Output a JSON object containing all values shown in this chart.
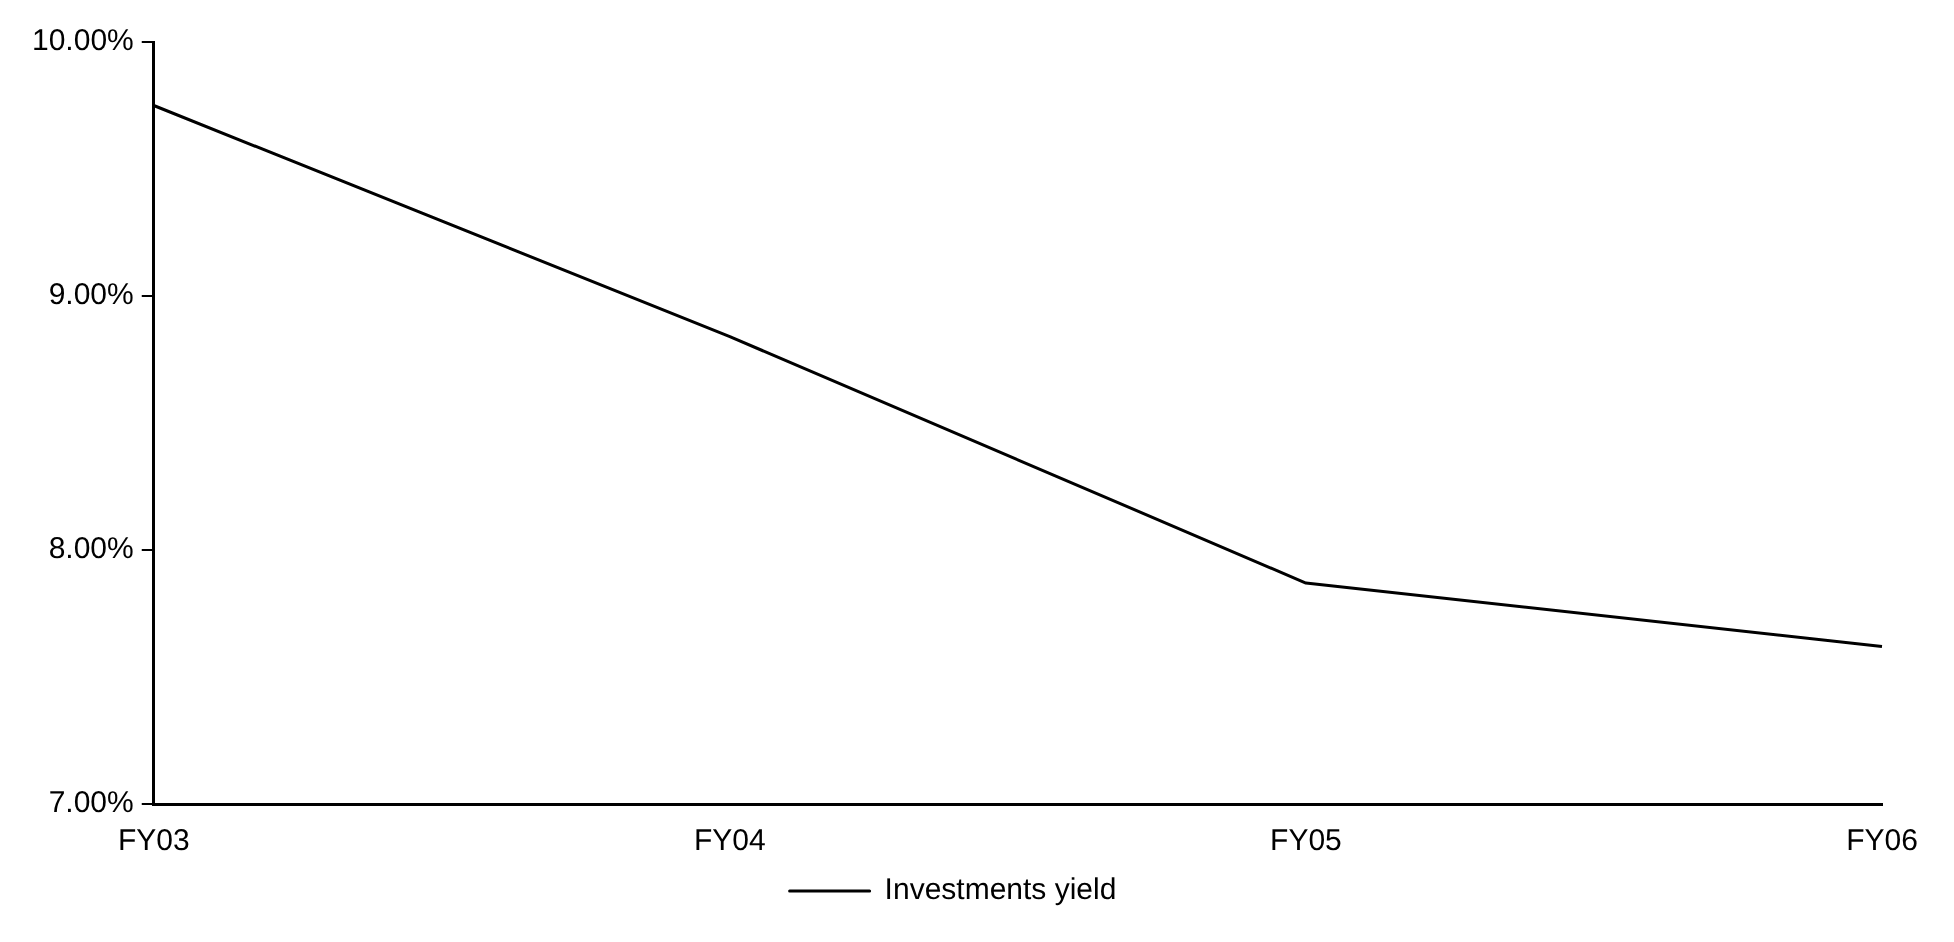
{
  "chart_data": {
    "type": "line",
    "categories": [
      "FY03",
      "FY04",
      "FY05",
      "FY06"
    ],
    "series": [
      {
        "name": "Investments yield",
        "color": "#000000",
        "values": [
          9.75,
          8.84,
          7.87,
          7.62
        ]
      }
    ],
    "ylim": [
      7,
      10
    ],
    "yticks": [
      {
        "value": 7,
        "label": "7.00%"
      },
      {
        "value": 8,
        "label": "8.00%"
      },
      {
        "value": 9,
        "label": "9.00%"
      },
      {
        "value": 10,
        "label": "10.00%"
      }
    ],
    "grid": false,
    "legend": "bottom",
    "marker": "none",
    "line_style": "solid"
  }
}
